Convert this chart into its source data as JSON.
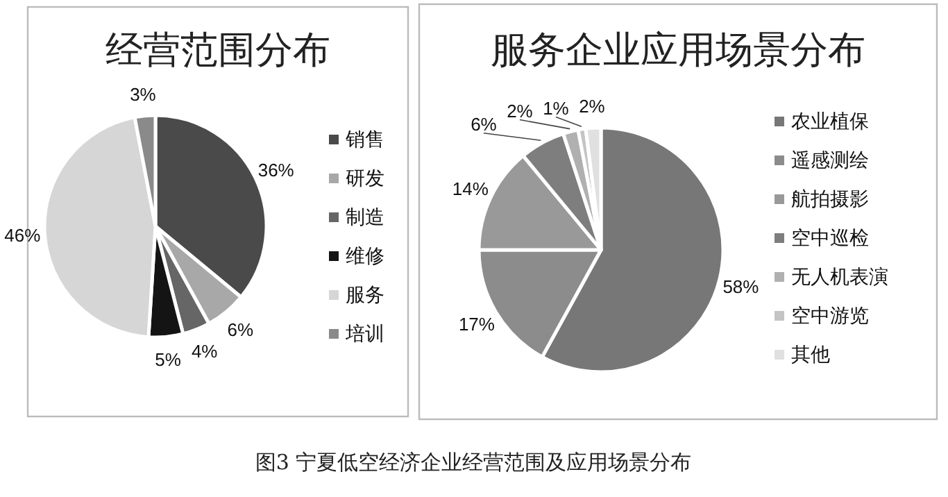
{
  "chart_data": [
    {
      "type": "pie",
      "title": "经营范围分布",
      "categories": [
        "销售",
        "研发",
        "制造",
        "维修",
        "服务",
        "培训"
      ],
      "values": [
        36,
        6,
        4,
        5,
        46,
        3
      ],
      "value_labels": [
        "36%",
        "6%",
        "4%",
        "5%",
        "46%",
        "3%"
      ],
      "colors": [
        "#4a4a4a",
        "#a8a8a8",
        "#666666",
        "#141414",
        "#d6d6d6",
        "#8a8a8a"
      ],
      "legend": "right",
      "annotations": [
        "图3 宁夏低空经济企业经营范围及应用场景分布"
      ]
    },
    {
      "type": "pie",
      "title": "服务企业应用场景分布",
      "categories": [
        "农业植保",
        "遥感测绘",
        "航拍摄影",
        "空中巡检",
        "无人机表演",
        "空中游览",
        "其他"
      ],
      "values": [
        58,
        17,
        14,
        6,
        2,
        1,
        2
      ],
      "value_labels": [
        "58%",
        "17%",
        "14%",
        "6%",
        "2%",
        "1%",
        "2%"
      ],
      "colors": [
        "#777777",
        "#8c8c8c",
        "#999999",
        "#7e7e7e",
        "#b0b0b0",
        "#c4c4c4",
        "#e0e0e0"
      ],
      "legend": "right"
    }
  ]
}
